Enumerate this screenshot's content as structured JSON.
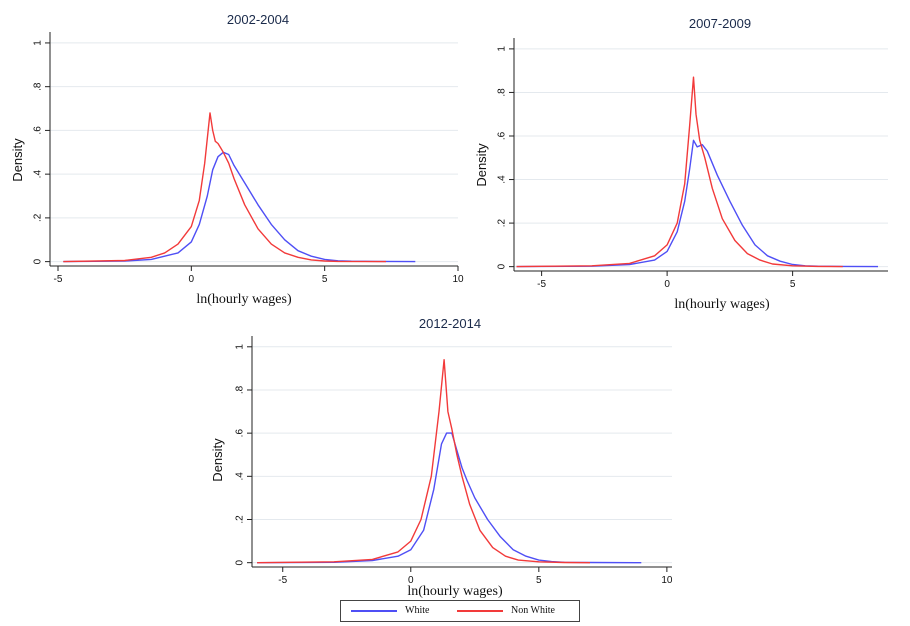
{
  "colors": {
    "white": "#4f4ff5",
    "non_white": "#f23a3a",
    "grid": "#e4e9ee"
  },
  "legend": {
    "white": "White",
    "non_white": "Non White"
  },
  "chart_data": [
    {
      "type": "line",
      "title": "2002-2004",
      "xlabel": "ln(hourly wages)",
      "ylabel": "Density",
      "xticks": [
        -5,
        0,
        5,
        10
      ],
      "yticks": [
        0,
        0.2,
        0.4,
        0.6,
        0.8,
        1
      ],
      "ytick_labels": [
        "0",
        ".2",
        ".4",
        ".6",
        ".8",
        "1"
      ],
      "xlim": [
        -5.3,
        10
      ],
      "ylim": [
        -0.02,
        1.05
      ],
      "series": [
        {
          "name": "White",
          "x": [
            -4.8,
            -2.5,
            -1.5,
            -0.5,
            0,
            0.3,
            0.6,
            0.8,
            1,
            1.2,
            1.4,
            1.6,
            2,
            2.5,
            3,
            3.5,
            4,
            4.5,
            5,
            5.5,
            6,
            7,
            8.4
          ],
          "values": [
            0,
            0.003,
            0.01,
            0.04,
            0.09,
            0.17,
            0.3,
            0.42,
            0.48,
            0.5,
            0.49,
            0.44,
            0.36,
            0.26,
            0.17,
            0.1,
            0.05,
            0.025,
            0.01,
            0.004,
            0.002,
            0.001,
            0
          ]
        },
        {
          "name": "Non White",
          "x": [
            -4.8,
            -2.5,
            -1.5,
            -1,
            -0.5,
            0,
            0.3,
            0.5,
            0.7,
            0.8,
            0.9,
            1,
            1.1,
            1.2,
            1.4,
            1.6,
            2,
            2.5,
            3,
            3.5,
            4,
            4.5,
            5,
            5.5,
            7.3
          ],
          "values": [
            0,
            0.005,
            0.02,
            0.04,
            0.08,
            0.16,
            0.28,
            0.45,
            0.68,
            0.6,
            0.55,
            0.54,
            0.52,
            0.5,
            0.45,
            0.38,
            0.26,
            0.15,
            0.08,
            0.04,
            0.02,
            0.008,
            0.003,
            0.001,
            0
          ]
        }
      ]
    },
    {
      "type": "line",
      "title": "2007-2009",
      "xlabel": "ln(hourly wages)",
      "ylabel": "Density",
      "xticks": [
        -5,
        0,
        5
      ],
      "yticks": [
        0,
        0.2,
        0.4,
        0.6,
        0.8,
        1
      ],
      "ytick_labels": [
        "0",
        ".2",
        ".4",
        ".6",
        ".8",
        "1"
      ],
      "xlim": [
        -6.1,
        8.8
      ],
      "ylim": [
        -0.02,
        1.05
      ],
      "series": [
        {
          "name": "White",
          "x": [
            -6,
            -3,
            -1.5,
            -0.5,
            0,
            0.4,
            0.7,
            0.9,
            1.05,
            1.2,
            1.4,
            1.6,
            2,
            2.5,
            3,
            3.5,
            4,
            4.5,
            5,
            5.5,
            6,
            7,
            8.4
          ],
          "values": [
            0,
            0.002,
            0.01,
            0.03,
            0.07,
            0.16,
            0.3,
            0.45,
            0.58,
            0.55,
            0.56,
            0.53,
            0.42,
            0.3,
            0.19,
            0.1,
            0.05,
            0.025,
            0.01,
            0.004,
            0.002,
            0.001,
            0
          ]
        },
        {
          "name": "Non White",
          "x": [
            -6,
            -3,
            -1.5,
            -0.5,
            0,
            0.4,
            0.7,
            0.9,
            1.05,
            1.15,
            1.3,
            1.5,
            1.8,
            2.2,
            2.7,
            3.2,
            3.7,
            4.2,
            5,
            6,
            7
          ],
          "values": [
            0,
            0.004,
            0.015,
            0.05,
            0.1,
            0.2,
            0.38,
            0.65,
            0.87,
            0.7,
            0.58,
            0.5,
            0.36,
            0.22,
            0.12,
            0.06,
            0.03,
            0.012,
            0.004,
            0.001,
            0
          ]
        }
      ]
    },
    {
      "type": "line",
      "title": "2012-2014",
      "xlabel": "ln(hourly wages)",
      "ylabel": "Density",
      "xticks": [
        -5,
        0,
        5,
        10
      ],
      "yticks": [
        0,
        0.2,
        0.4,
        0.6,
        0.8,
        1
      ],
      "ytick_labels": [
        "0",
        ".2",
        ".4",
        ".6",
        ".8",
        "1"
      ],
      "xlim": [
        -6.2,
        10.2
      ],
      "ylim": [
        -0.02,
        1.05
      ],
      "series": [
        {
          "name": "White",
          "x": [
            -6,
            -3,
            -1.5,
            -0.5,
            0,
            0.5,
            0.9,
            1.2,
            1.4,
            1.6,
            1.8,
            2,
            2.2,
            2.5,
            3,
            3.5,
            4,
            4.5,
            5,
            5.5,
            6,
            7,
            9
          ],
          "values": [
            0,
            0.002,
            0.01,
            0.03,
            0.06,
            0.15,
            0.34,
            0.55,
            0.6,
            0.6,
            0.52,
            0.44,
            0.38,
            0.3,
            0.2,
            0.12,
            0.06,
            0.03,
            0.012,
            0.005,
            0.002,
            0.001,
            0
          ]
        },
        {
          "name": "Non White",
          "x": [
            -6,
            -3,
            -1.5,
            -0.5,
            0,
            0.4,
            0.8,
            1.1,
            1.3,
            1.45,
            1.6,
            1.8,
            2,
            2.3,
            2.7,
            3.2,
            3.7,
            4.2,
            5,
            6,
            7
          ],
          "values": [
            0,
            0.004,
            0.015,
            0.05,
            0.1,
            0.2,
            0.4,
            0.7,
            0.94,
            0.7,
            0.62,
            0.5,
            0.4,
            0.27,
            0.15,
            0.07,
            0.03,
            0.012,
            0.004,
            0.001,
            0
          ]
        }
      ]
    }
  ]
}
